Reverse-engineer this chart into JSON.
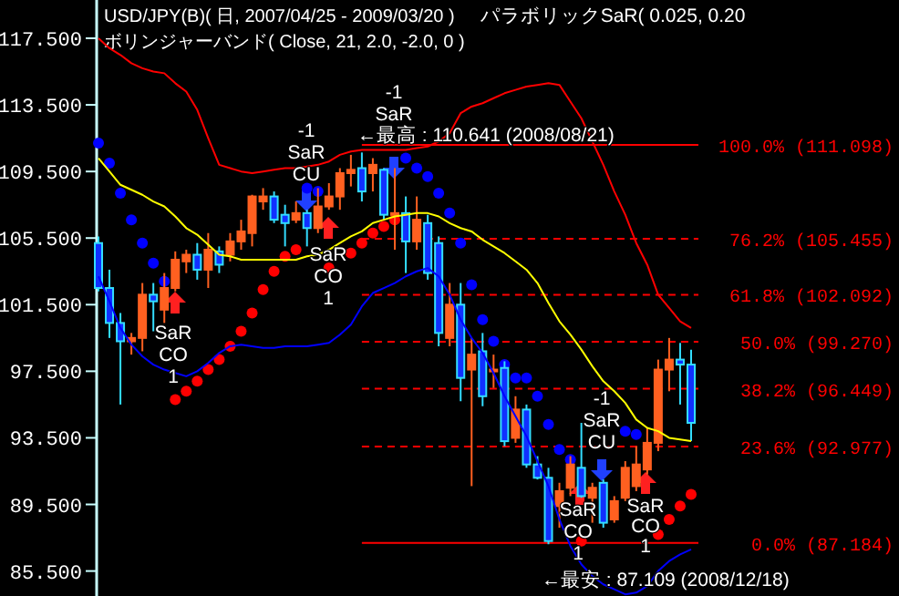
{
  "chart_data": {
    "type": "candlestick",
    "title": "USD/JPY(B)( 日, 2007/04/25 - 2009/03/20 )",
    "subtitle": "ボリンジャーバンド( Close, 21, 2.0, -2.0, 0 )",
    "categories": [
      null,
      null,
      null,
      null,
      null,
      null,
      null,
      null,
      null,
      null,
      null,
      null,
      null,
      null,
      null,
      null,
      null,
      null,
      null,
      null,
      null,
      null,
      null,
      null,
      null,
      null,
      null,
      null,
      null,
      null,
      null,
      null,
      null,
      null,
      null,
      null,
      null,
      null,
      null,
      null,
      null,
      null,
      null,
      null,
      null,
      null,
      null,
      null,
      null,
      null,
      null,
      null,
      null,
      null,
      null
    ],
    "ohlc": [
      [
        105.2,
        105.6,
        102.3,
        102.5
      ],
      [
        102.5,
        103.6,
        99.5,
        100.4
      ],
      [
        100.4,
        101.0,
        95.5,
        99.3
      ],
      [
        99.3,
        99.8,
        98.5,
        99.5
      ],
      [
        99.5,
        102.8,
        98.7,
        102.1
      ],
      [
        102.1,
        102.8,
        99.9,
        101.7
      ],
      [
        101.2,
        103.4,
        100.4,
        102.5
      ],
      [
        102.5,
        104.7,
        102.3,
        104.2
      ],
      [
        104.1,
        104.8,
        103.4,
        104.5
      ],
      [
        104.5,
        105.2,
        103.0,
        103.6
      ],
      [
        103.6,
        105.8,
        102.5,
        104.8
      ],
      [
        104.7,
        105.0,
        103.4,
        103.9
      ],
      [
        104.5,
        105.8,
        104.1,
        105.3
      ],
      [
        105.3,
        106.6,
        104.8,
        105.9
      ],
      [
        105.8,
        108.1,
        105.0,
        108.0
      ],
      [
        107.7,
        108.5,
        107.2,
        108.0
      ],
      [
        108.0,
        108.3,
        106.4,
        106.6
      ],
      [
        106.9,
        107.5,
        105.0,
        106.4
      ],
      [
        106.6,
        107.7,
        106.4,
        107.0
      ],
      [
        107.0,
        107.2,
        105.0,
        106.1
      ],
      [
        106.1,
        108.5,
        105.8,
        107.4
      ],
      [
        107.4,
        108.8,
        107.2,
        108.0
      ],
      [
        108.0,
        109.7,
        107.2,
        109.4
      ],
      [
        109.4,
        110.5,
        108.6,
        109.6
      ],
      [
        109.7,
        110.641,
        107.7,
        108.3
      ],
      [
        109.4,
        110.3,
        108.3,
        109.9
      ],
      [
        109.6,
        109.7,
        106.6,
        106.9
      ],
      [
        106.9,
        109.7,
        104.8,
        107.0
      ],
      [
        107.0,
        108.0,
        103.4,
        105.3
      ],
      [
        105.3,
        108.0,
        104.8,
        106.6
      ],
      [
        106.4,
        106.9,
        103.0,
        103.4
      ],
      [
        105.2,
        105.6,
        99.0,
        99.8
      ],
      [
        99.5,
        102.8,
        99.0,
        101.5
      ],
      [
        101.5,
        102.8,
        95.7,
        97.1
      ],
      [
        97.6,
        99.5,
        90.6,
        98.5
      ],
      [
        98.7,
        99.8,
        95.4,
        96.0
      ],
      [
        97.5,
        98.5,
        96.5,
        97.6
      ],
      [
        97.7,
        98.1,
        93.0,
        93.3
      ],
      [
        93.5,
        96.0,
        93.2,
        95.2
      ],
      [
        95.2,
        95.5,
        91.7,
        91.9
      ],
      [
        91.9,
        92.4,
        91.0,
        91.1
      ],
      [
        91.1,
        91.7,
        87.109,
        87.3
      ],
      [
        89.4,
        90.8,
        88.1,
        90.3
      ],
      [
        90.5,
        92.4,
        90.0,
        91.9
      ],
      [
        91.7,
        94.4,
        89.9,
        90.0
      ],
      [
        89.9,
        90.8,
        88.4,
        90.5
      ],
      [
        90.8,
        91.0,
        88.1,
        88.4
      ],
      [
        88.6,
        90.0,
        88.4,
        89.7
      ],
      [
        89.9,
        92.1,
        89.7,
        91.7
      ],
      [
        90.6,
        93.0,
        90.3,
        91.9
      ],
      [
        91.6,
        94.1,
        91.3,
        93.2
      ],
      [
        93.2,
        98.2,
        92.7,
        97.6
      ],
      [
        97.6,
        99.5,
        96.3,
        98.2
      ],
      [
        98.2,
        99.2,
        95.5,
        97.9
      ],
      [
        97.9,
        98.8,
        93.3,
        94.4
      ]
    ],
    "colors": [
      "#33ddff",
      "#33ddff",
      "#33ddff",
      "#ff6020",
      "#ff6020",
      "#33ddff",
      "#ff6020",
      "#ff6020",
      "#ff6020",
      "#33ddff",
      "#ff6020",
      "#33ddff",
      "#ff6020",
      "#ff6020",
      "#ff6020",
      "#ff6020",
      "#33ddff",
      "#33ddff",
      "#ff6020",
      "#33ddff",
      "#ff6020",
      "#ff6020",
      "#ff6020",
      "#ff6020",
      "#33ddff",
      "#ff6020",
      "#33ddff",
      "#ff6020",
      "#33ddff",
      "#ff6020",
      "#33ddff",
      "#33ddff",
      "#ff6020",
      "#33ddff",
      "#ff6020",
      "#33ddff",
      "#ff6020",
      "#33ddff",
      "#ff6020",
      "#33ddff",
      "#33ddff",
      "#33ddff",
      "#ff6020",
      "#ff6020",
      "#33ddff",
      "#ff6020",
      "#33ddff",
      "#ff6020",
      "#ff6020",
      "#ff6020",
      "#ff6020",
      "#ff6020",
      "#ff6020",
      "#33ddff",
      "#33ddff"
    ],
    "series": [
      {
        "type": "line",
        "color": "#ff0000",
        "values": [
          117.5,
          116.9,
          116.5,
          116.0,
          115.7,
          115.5,
          115.4,
          114.8,
          114.3,
          113.2,
          111.5,
          109.9,
          109.7,
          109.5,
          109.4,
          109.5,
          109.6,
          109.7,
          109.7,
          109.8,
          109.9,
          110.1,
          110.5,
          110.7,
          110.8,
          110.8,
          110.8,
          110.8,
          110.8,
          110.9,
          111.0,
          111.3,
          111.8,
          113.0,
          113.4,
          113.6,
          113.9,
          114.2,
          114.4,
          114.6,
          114.7,
          114.8,
          114.7,
          113.7,
          112.7,
          111.3,
          109.9,
          108.3,
          106.9,
          105.2,
          103.9,
          102.1,
          101.3,
          100.5,
          100.1
        ]
      },
      {
        "type": "line",
        "color": "#ffff00",
        "values": [
          110.3,
          109.5,
          108.7,
          108.4,
          108.1,
          107.7,
          107.4,
          106.8,
          106.1,
          105.7,
          105.1,
          104.5,
          104.4,
          104.2,
          104.2,
          104.2,
          104.2,
          104.2,
          104.2,
          104.4,
          104.5,
          104.8,
          105.2,
          105.6,
          105.9,
          106.4,
          106.6,
          106.8,
          106.9,
          107.0,
          107.0,
          106.8,
          106.4,
          106.1,
          105.9,
          105.4,
          105.0,
          104.6,
          104.1,
          103.6,
          102.8,
          101.6,
          100.5,
          99.7,
          98.8,
          97.8,
          96.9,
          96.3,
          95.6,
          94.6,
          94.1,
          93.9,
          93.5,
          93.4,
          93.3
        ]
      },
      {
        "type": "line",
        "color": "#0000ff",
        "values": [
          103.2,
          101.7,
          100.1,
          99.1,
          98.4,
          97.9,
          97.6,
          97.4,
          97.2,
          97.5,
          98.0,
          98.6,
          99.0,
          99.1,
          99.0,
          98.9,
          98.9,
          99.0,
          99.0,
          99.0,
          99.1,
          99.2,
          99.7,
          100.3,
          101.4,
          102.2,
          102.5,
          102.8,
          103.2,
          103.5,
          103.7,
          103.2,
          102.1,
          100.6,
          99.5,
          98.6,
          97.4,
          96.0,
          94.8,
          93.6,
          92.1,
          90.6,
          88.6,
          87.0,
          85.9,
          85.2,
          84.7,
          84.4,
          84.1,
          84.2,
          84.6,
          85.5,
          86.1,
          86.5,
          86.8
        ]
      },
      {
        "type": "scatter",
        "color": "#0000ff",
        "values": [
          111.2,
          110.0,
          108.2,
          106.6,
          105.2,
          104.0,
          102.9,
          null,
          null,
          null,
          null,
          null,
          null,
          null,
          null,
          null,
          null,
          null,
          null,
          108.5,
          108.3,
          null,
          null,
          null,
          null,
          null,
          null,
          null,
          110.3,
          109.7,
          109.2,
          108.2,
          107.0,
          105.2,
          102.7,
          100.6,
          99.3,
          97.9,
          97.1,
          97.1,
          96.0,
          94.3,
          92.8,
          92.2,
          null,
          null,
          null,
          null,
          93.9,
          93.7,
          null,
          null,
          null,
          null,
          null
        ]
      },
      {
        "type": "scatter",
        "color": "#ff0000",
        "values": [
          null,
          null,
          null,
          null,
          null,
          null,
          null,
          95.8,
          96.3,
          96.9,
          97.6,
          98.2,
          99.0,
          99.9,
          101.0,
          102.4,
          103.5,
          104.4,
          104.8,
          null,
          null,
          103.7,
          null,
          104.6,
          105.2,
          105.8,
          106.2,
          106.6,
          null,
          null,
          null,
          null,
          null,
          null,
          null,
          null,
          null,
          null,
          null,
          null,
          null,
          null,
          null,
          null,
          87.3,
          null,
          null,
          null,
          null,
          null,
          null,
          87.7,
          88.6,
          89.4,
          90.1
        ]
      }
    ],
    "ylim": [
      84.0,
      119.8
    ],
    "yticks": [
      {
        "value": 85.5,
        "label": "85.500"
      },
      {
        "value": 89.5,
        "label": "89.500"
      },
      {
        "value": 93.5,
        "label": "93.500"
      },
      {
        "value": 97.5,
        "label": "97.500"
      },
      {
        "value": 101.5,
        "label": "101.500"
      },
      {
        "value": 105.5,
        "label": "105.500"
      },
      {
        "value": 109.5,
        "label": "109.500"
      },
      {
        "value": 113.5,
        "label": "113.500"
      },
      {
        "value": 117.5,
        "label": "117.500"
      }
    ],
    "ref_lines": [
      {
        "axis": "y",
        "value": 111.098,
        "label": "100.0% (111.098)",
        "color": "#ff0000",
        "line_style": "solid"
      },
      {
        "axis": "y",
        "value": 105.455,
        "label": "76.2% (105.455)",
        "color": "#ff0000",
        "line_style": "dashed"
      },
      {
        "axis": "y",
        "value": 102.092,
        "label": "61.8% (102.092)",
        "color": "#ff0000",
        "line_style": "dashed"
      },
      {
        "axis": "y",
        "value": 99.27,
        "label": "50.0% (99.270)",
        "color": "#ff0000",
        "line_style": "dashed"
      },
      {
        "axis": "y",
        "value": 96.449,
        "label": "38.2% (96.449)",
        "color": "#ff0000",
        "line_style": "dashed"
      },
      {
        "axis": "y",
        "value": 92.977,
        "label": "23.6% (92.977)",
        "color": "#ff0000",
        "line_style": "dashed"
      },
      {
        "axis": "y",
        "value": 87.184,
        "label": "0.0% (87.184)",
        "color": "#ff0000",
        "line_style": "solid"
      }
    ],
    "annotations": [
      "パラボリックSaR( 0.025, 0.20",
      "SaR\nCO\n1",
      "-1\nSaR\nCU",
      "SaR\nCO\n1",
      "-1\nSaR",
      {
        "text": "←最高 : 110.641 (2008/08/21)",
        "y": 110.641
      },
      "-1\nSaR\nCU",
      "SaR\nCO\n1",
      "SaR\nCO\n1",
      {
        "text": "←最安 : 87.109 (2008/12/18)",
        "y": 87.109
      }
    ]
  }
}
